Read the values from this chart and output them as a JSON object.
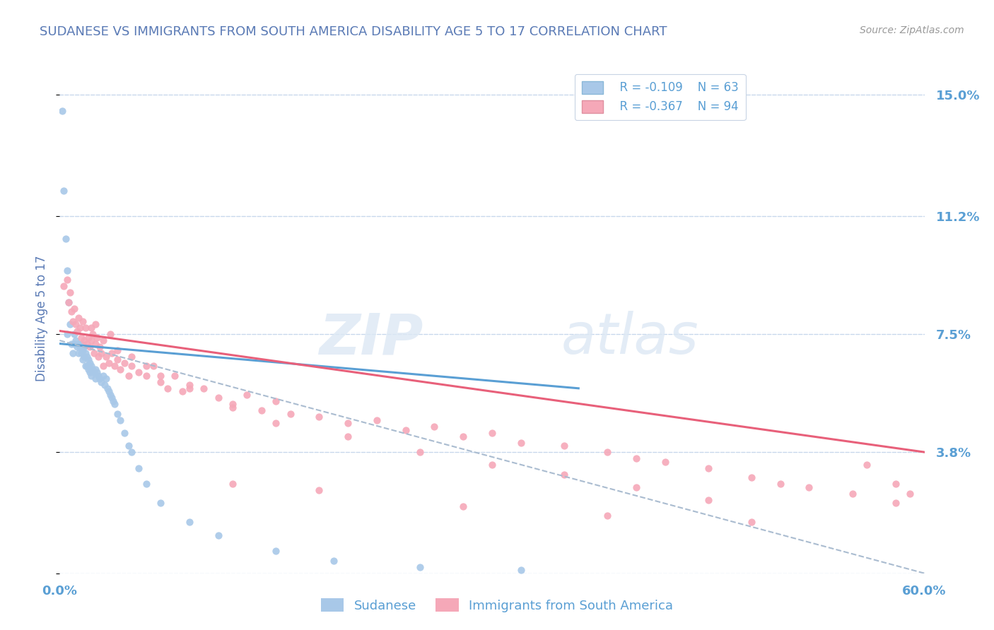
{
  "title": "SUDANESE VS IMMIGRANTS FROM SOUTH AMERICA DISABILITY AGE 5 TO 17 CORRELATION CHART",
  "source": "Source: ZipAtlas.com",
  "ylabel": "Disability Age 5 to 17",
  "xlim": [
    0.0,
    0.6
  ],
  "ylim": [
    0.0,
    0.16
  ],
  "yticks": [
    0.0,
    0.038,
    0.075,
    0.112,
    0.15
  ],
  "ytick_labels": [
    "",
    "3.8%",
    "7.5%",
    "11.2%",
    "15.0%"
  ],
  "xticks": [
    0.0,
    0.6
  ],
  "xtick_labels": [
    "0.0%",
    "60.0%"
  ],
  "blue_color": "#a8c8e8",
  "pink_color": "#f5a8b8",
  "blue_line_color": "#5a9fd4",
  "pink_line_color": "#e8607a",
  "dashed_line_color": "#aabcd0",
  "title_color": "#5a7ab5",
  "axis_label_color": "#5a7ab5",
  "tick_label_color": "#5a9fd4",
  "grid_color": "#c8d8ec",
  "legend_R_blue": "R = -0.109",
  "legend_N_blue": "N = 63",
  "legend_R_pink": "R = -0.367",
  "legend_N_pink": "N = 94",
  "legend_label_blue": "Sudanese",
  "legend_label_pink": "Immigrants from South America",
  "watermark_zip": "ZIP",
  "watermark_atlas": "atlas",
  "blue_scatter_x": [
    0.002,
    0.003,
    0.004,
    0.005,
    0.005,
    0.006,
    0.007,
    0.008,
    0.009,
    0.01,
    0.01,
    0.011,
    0.012,
    0.013,
    0.013,
    0.014,
    0.015,
    0.015,
    0.016,
    0.016,
    0.017,
    0.017,
    0.018,
    0.018,
    0.019,
    0.019,
    0.02,
    0.02,
    0.021,
    0.021,
    0.022,
    0.022,
    0.023,
    0.024,
    0.025,
    0.025,
    0.026,
    0.027,
    0.028,
    0.029,
    0.03,
    0.031,
    0.032,
    0.033,
    0.034,
    0.035,
    0.036,
    0.037,
    0.038,
    0.04,
    0.042,
    0.045,
    0.048,
    0.05,
    0.055,
    0.06,
    0.07,
    0.09,
    0.11,
    0.15,
    0.19,
    0.25,
    0.32
  ],
  "blue_scatter_y": [
    0.145,
    0.12,
    0.105,
    0.095,
    0.075,
    0.085,
    0.078,
    0.072,
    0.069,
    0.075,
    0.072,
    0.073,
    0.071,
    0.072,
    0.069,
    0.071,
    0.072,
    0.069,
    0.07,
    0.067,
    0.071,
    0.068,
    0.069,
    0.065,
    0.068,
    0.065,
    0.067,
    0.064,
    0.066,
    0.063,
    0.065,
    0.062,
    0.064,
    0.063,
    0.064,
    0.061,
    0.063,
    0.062,
    0.061,
    0.06,
    0.062,
    0.059,
    0.061,
    0.058,
    0.057,
    0.056,
    0.055,
    0.054,
    0.053,
    0.05,
    0.048,
    0.044,
    0.04,
    0.038,
    0.033,
    0.028,
    0.022,
    0.016,
    0.012,
    0.007,
    0.004,
    0.002,
    0.001
  ],
  "pink_scatter_x": [
    0.003,
    0.005,
    0.006,
    0.007,
    0.008,
    0.009,
    0.01,
    0.011,
    0.012,
    0.013,
    0.014,
    0.015,
    0.016,
    0.017,
    0.018,
    0.019,
    0.02,
    0.021,
    0.022,
    0.023,
    0.024,
    0.025,
    0.026,
    0.027,
    0.028,
    0.029,
    0.03,
    0.032,
    0.034,
    0.036,
    0.038,
    0.04,
    0.042,
    0.045,
    0.048,
    0.05,
    0.055,
    0.06,
    0.065,
    0.07,
    0.075,
    0.08,
    0.085,
    0.09,
    0.1,
    0.11,
    0.12,
    0.13,
    0.14,
    0.15,
    0.16,
    0.18,
    0.2,
    0.22,
    0.24,
    0.26,
    0.28,
    0.3,
    0.32,
    0.35,
    0.38,
    0.4,
    0.42,
    0.45,
    0.48,
    0.5,
    0.52,
    0.55,
    0.58,
    0.022,
    0.025,
    0.03,
    0.035,
    0.04,
    0.05,
    0.06,
    0.07,
    0.09,
    0.12,
    0.15,
    0.2,
    0.25,
    0.3,
    0.35,
    0.4,
    0.45,
    0.12,
    0.18,
    0.28,
    0.38,
    0.48,
    0.56,
    0.58,
    0.59
  ],
  "pink_scatter_y": [
    0.09,
    0.092,
    0.085,
    0.088,
    0.082,
    0.079,
    0.083,
    0.078,
    0.076,
    0.08,
    0.077,
    0.074,
    0.079,
    0.073,
    0.077,
    0.072,
    0.074,
    0.071,
    0.073,
    0.075,
    0.069,
    0.072,
    0.074,
    0.068,
    0.071,
    0.069,
    0.065,
    0.068,
    0.066,
    0.069,
    0.065,
    0.067,
    0.064,
    0.066,
    0.062,
    0.065,
    0.063,
    0.062,
    0.065,
    0.06,
    0.058,
    0.062,
    0.057,
    0.059,
    0.058,
    0.055,
    0.053,
    0.056,
    0.051,
    0.054,
    0.05,
    0.049,
    0.047,
    0.048,
    0.045,
    0.046,
    0.043,
    0.044,
    0.041,
    0.04,
    0.038,
    0.036,
    0.035,
    0.033,
    0.03,
    0.028,
    0.027,
    0.025,
    0.022,
    0.077,
    0.078,
    0.073,
    0.075,
    0.07,
    0.068,
    0.065,
    0.062,
    0.058,
    0.052,
    0.047,
    0.043,
    0.038,
    0.034,
    0.031,
    0.027,
    0.023,
    0.028,
    0.026,
    0.021,
    0.018,
    0.016,
    0.034,
    0.028,
    0.025
  ],
  "blue_trend_x": [
    0.0,
    0.36
  ],
  "blue_trend_y": [
    0.072,
    0.058
  ],
  "pink_trend_x": [
    0.0,
    0.6
  ],
  "pink_trend_y": [
    0.076,
    0.038
  ],
  "dashed_trend_x": [
    0.0,
    0.6
  ],
  "dashed_trend_y": [
    0.073,
    0.0
  ]
}
